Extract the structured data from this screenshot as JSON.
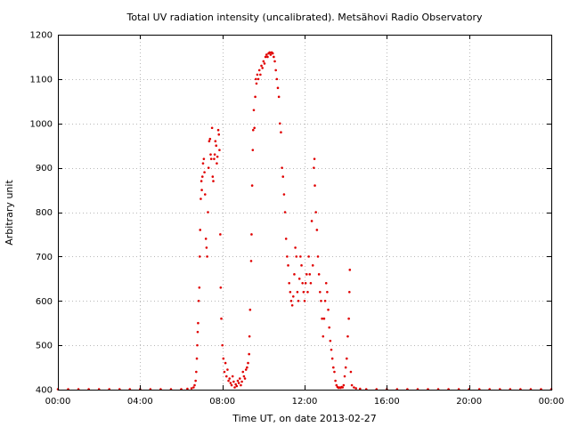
{
  "chart_data": {
    "type": "scatter",
    "title": "Total UV radiation intensity (uncalibrated). Metsähovi Radio Observatory",
    "xlabel": "Time UT, on date 2013-02-27",
    "ylabel": "Arbitrary unit",
    "xlim": [
      0,
      24
    ],
    "ylim": [
      400,
      1200
    ],
    "x_ticks": [
      {
        "value": 0,
        "label": "00:00"
      },
      {
        "value": 4,
        "label": "04:00"
      },
      {
        "value": 8,
        "label": "08:00"
      },
      {
        "value": 12,
        "label": "12:00"
      },
      {
        "value": 16,
        "label": "16:00"
      },
      {
        "value": 20,
        "label": "20:00"
      },
      {
        "value": 24,
        "label": "00:00"
      }
    ],
    "y_ticks": [
      {
        "value": 400,
        "label": "400"
      },
      {
        "value": 500,
        "label": "500"
      },
      {
        "value": 600,
        "label": "600"
      },
      {
        "value": 700,
        "label": "700"
      },
      {
        "value": 800,
        "label": "800"
      },
      {
        "value": 900,
        "label": "900"
      },
      {
        "value": 1000,
        "label": "1000"
      },
      {
        "value": 1100,
        "label": "1100"
      },
      {
        "value": 1200,
        "label": "1200"
      }
    ],
    "grid": true,
    "marker_color": "#e00000",
    "series": [
      {
        "values": [
          [
            0.0,
            401
          ],
          [
            0.5,
            401
          ],
          [
            1.0,
            401
          ],
          [
            1.5,
            401
          ],
          [
            2.0,
            401
          ],
          [
            2.5,
            401
          ],
          [
            3.0,
            401
          ],
          [
            3.5,
            401
          ],
          [
            4.0,
            401
          ],
          [
            4.5,
            401
          ],
          [
            5.0,
            401
          ],
          [
            5.5,
            401
          ],
          [
            6.0,
            401
          ],
          [
            6.3,
            402
          ],
          [
            6.5,
            403
          ],
          [
            6.6,
            405
          ],
          [
            6.65,
            410
          ],
          [
            6.7,
            420
          ],
          [
            6.73,
            440
          ],
          [
            6.76,
            470
          ],
          [
            6.78,
            500
          ],
          [
            6.8,
            530
          ],
          [
            6.82,
            550
          ],
          [
            6.85,
            600
          ],
          [
            6.88,
            630
          ],
          [
            6.9,
            700
          ],
          [
            6.92,
            760
          ],
          [
            6.95,
            830
          ],
          [
            6.98,
            870
          ],
          [
            7.0,
            850
          ],
          [
            7.03,
            880
          ],
          [
            7.06,
            910
          ],
          [
            7.1,
            920
          ],
          [
            7.13,
            890
          ],
          [
            7.16,
            840
          ],
          [
            7.2,
            740
          ],
          [
            7.23,
            720
          ],
          [
            7.26,
            700
          ],
          [
            7.3,
            800
          ],
          [
            7.33,
            900
          ],
          [
            7.36,
            960
          ],
          [
            7.4,
            965
          ],
          [
            7.43,
            930
          ],
          [
            7.46,
            920
          ],
          [
            7.5,
            990
          ],
          [
            7.53,
            880
          ],
          [
            7.56,
            870
          ],
          [
            7.6,
            920
          ],
          [
            7.63,
            930
          ],
          [
            7.66,
            960
          ],
          [
            7.7,
            950
          ],
          [
            7.73,
            910
          ],
          [
            7.76,
            925
          ],
          [
            7.8,
            985
          ],
          [
            7.83,
            975
          ],
          [
            7.86,
            940
          ],
          [
            7.9,
            750
          ],
          [
            7.92,
            630
          ],
          [
            7.95,
            560
          ],
          [
            8.0,
            500
          ],
          [
            8.05,
            470
          ],
          [
            8.1,
            440
          ],
          [
            8.15,
            460
          ],
          [
            8.2,
            430
          ],
          [
            8.25,
            445
          ],
          [
            8.3,
            420
          ],
          [
            8.35,
            425
          ],
          [
            8.4,
            415
          ],
          [
            8.45,
            410
          ],
          [
            8.5,
            430
          ],
          [
            8.55,
            418
          ],
          [
            8.6,
            405
          ],
          [
            8.65,
            412
          ],
          [
            8.7,
            408
          ],
          [
            8.75,
            420
          ],
          [
            8.8,
            415
          ],
          [
            8.85,
            425
          ],
          [
            8.9,
            410
          ],
          [
            8.95,
            418
          ],
          [
            9.0,
            440
          ],
          [
            9.05,
            430
          ],
          [
            9.1,
            425
          ],
          [
            9.15,
            445
          ],
          [
            9.2,
            450
          ],
          [
            9.25,
            460
          ],
          [
            9.3,
            480
          ],
          [
            9.32,
            520
          ],
          [
            9.35,
            580
          ],
          [
            9.4,
            690
          ],
          [
            9.42,
            750
          ],
          [
            9.45,
            860
          ],
          [
            9.48,
            940
          ],
          [
            9.5,
            985
          ],
          [
            9.53,
            1030
          ],
          [
            9.56,
            990
          ],
          [
            9.6,
            1060
          ],
          [
            9.63,
            1100
          ],
          [
            9.66,
            1090
          ],
          [
            9.7,
            1110
          ],
          [
            9.75,
            1100
          ],
          [
            9.8,
            1120
          ],
          [
            9.85,
            1110
          ],
          [
            9.9,
            1130
          ],
          [
            9.95,
            1125
          ],
          [
            10.0,
            1140
          ],
          [
            10.05,
            1135
          ],
          [
            10.1,
            1150
          ],
          [
            10.15,
            1155
          ],
          [
            10.2,
            1150
          ],
          [
            10.25,
            1158
          ],
          [
            10.3,
            1160
          ],
          [
            10.35,
            1155
          ],
          [
            10.4,
            1160
          ],
          [
            10.45,
            1158
          ],
          [
            10.5,
            1150
          ],
          [
            10.55,
            1140
          ],
          [
            10.6,
            1120
          ],
          [
            10.65,
            1100
          ],
          [
            10.7,
            1080
          ],
          [
            10.75,
            1060
          ],
          [
            10.8,
            1000
          ],
          [
            10.85,
            980
          ],
          [
            10.9,
            900
          ],
          [
            10.95,
            880
          ],
          [
            11.0,
            840
          ],
          [
            11.05,
            800
          ],
          [
            11.1,
            740
          ],
          [
            11.15,
            700
          ],
          [
            11.2,
            680
          ],
          [
            11.25,
            640
          ],
          [
            11.3,
            620
          ],
          [
            11.35,
            600
          ],
          [
            11.4,
            590
          ],
          [
            11.45,
            610
          ],
          [
            11.5,
            660
          ],
          [
            11.55,
            720
          ],
          [
            11.6,
            700
          ],
          [
            11.65,
            620
          ],
          [
            11.7,
            600
          ],
          [
            11.75,
            650
          ],
          [
            11.8,
            700
          ],
          [
            11.85,
            680
          ],
          [
            11.9,
            640
          ],
          [
            11.95,
            620
          ],
          [
            12.0,
            600
          ],
          [
            12.05,
            640
          ],
          [
            12.1,
            660
          ],
          [
            12.15,
            620
          ],
          [
            12.2,
            700
          ],
          [
            12.25,
            660
          ],
          [
            12.3,
            640
          ],
          [
            12.35,
            780
          ],
          [
            12.4,
            680
          ],
          [
            12.45,
            900
          ],
          [
            12.48,
            920
          ],
          [
            12.5,
            860
          ],
          [
            12.55,
            800
          ],
          [
            12.6,
            760
          ],
          [
            12.65,
            700
          ],
          [
            12.7,
            660
          ],
          [
            12.75,
            620
          ],
          [
            12.8,
            600
          ],
          [
            12.85,
            560
          ],
          [
            12.9,
            520
          ],
          [
            12.95,
            560
          ],
          [
            13.0,
            600
          ],
          [
            13.05,
            640
          ],
          [
            13.1,
            620
          ],
          [
            13.15,
            580
          ],
          [
            13.2,
            540
          ],
          [
            13.25,
            510
          ],
          [
            13.3,
            490
          ],
          [
            13.35,
            470
          ],
          [
            13.4,
            450
          ],
          [
            13.45,
            440
          ],
          [
            13.5,
            420
          ],
          [
            13.55,
            410
          ],
          [
            13.6,
            406
          ],
          [
            13.65,
            404
          ],
          [
            13.7,
            405
          ],
          [
            13.75,
            404
          ],
          [
            13.8,
            406
          ],
          [
            13.85,
            405
          ],
          [
            13.9,
            410
          ],
          [
            13.95,
            430
          ],
          [
            14.0,
            450
          ],
          [
            14.05,
            470
          ],
          [
            14.1,
            520
          ],
          [
            14.15,
            560
          ],
          [
            14.18,
            620
          ],
          [
            14.2,
            670
          ],
          [
            14.25,
            440
          ],
          [
            14.3,
            410
          ],
          [
            14.4,
            405
          ],
          [
            14.5,
            403
          ],
          [
            14.7,
            402
          ],
          [
            15.0,
            401
          ],
          [
            15.5,
            401
          ],
          [
            16.0,
            401
          ],
          [
            16.5,
            401
          ],
          [
            17.0,
            401
          ],
          [
            17.5,
            401
          ],
          [
            18.0,
            401
          ],
          [
            18.5,
            401
          ],
          [
            19.0,
            401
          ],
          [
            19.5,
            401
          ],
          [
            20.0,
            401
          ],
          [
            20.5,
            401
          ],
          [
            21.0,
            401
          ],
          [
            21.5,
            401
          ],
          [
            22.0,
            401
          ],
          [
            22.5,
            401
          ],
          [
            23.0,
            401
          ],
          [
            23.5,
            401
          ],
          [
            24.0,
            401
          ]
        ]
      }
    ]
  }
}
